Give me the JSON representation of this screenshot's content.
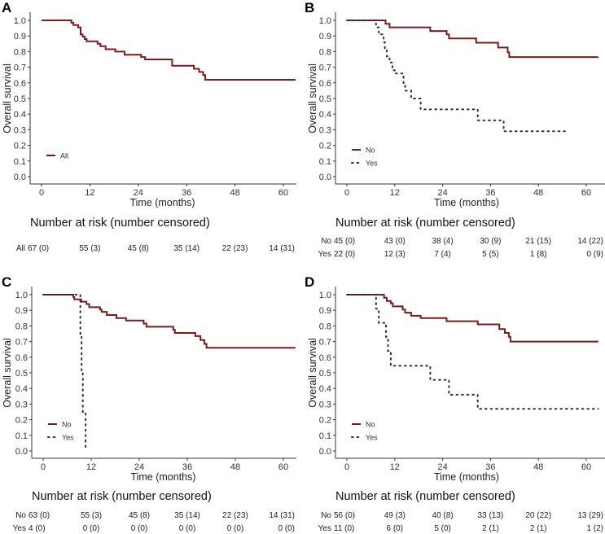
{
  "chart_data": [
    {
      "panel": "A",
      "type": "line",
      "xlabel": "Time (months)",
      "ylabel": "Overall survival",
      "xlim": [
        0,
        63
      ],
      "ylim": [
        0,
        1
      ],
      "xticks": [
        "0",
        "12",
        "24",
        "36",
        "48",
        "60"
      ],
      "yticks": [
        "0.0",
        "0.1",
        "0.2",
        "0.3",
        "0.4",
        "0.5",
        "0.6",
        "0.7",
        "0.8",
        "0.9",
        "1.0"
      ],
      "legend_placement": "bottom-left",
      "series": [
        {
          "name": "All",
          "color": "#7a1c1c",
          "style": "solid",
          "times": [
            0,
            7.4,
            7.9,
            9.1,
            9.7,
            10.2,
            10.7,
            11.2,
            13.9,
            14.6,
            15.9,
            18.3,
            20.6,
            24.7,
            25.7,
            32.4,
            37.8,
            39.1,
            40.1,
            40.6,
            63
          ],
          "survival": [
            1,
            0.985,
            0.97,
            0.955,
            0.91,
            0.896,
            0.88,
            0.866,
            0.85,
            0.835,
            0.815,
            0.8,
            0.78,
            0.765,
            0.75,
            0.71,
            0.69,
            0.67,
            0.65,
            0.62,
            0.62
          ]
        }
      ],
      "risk_table": {
        "title": "Number at risk (number censored)",
        "rows": [
          {
            "label": "All",
            "values": [
              "67 (0)",
              "55 (3)",
              "45 (8)",
              "35 (14)",
              "22 (23)",
              "14 (31)"
            ]
          }
        ]
      }
    },
    {
      "panel": "B",
      "type": "line",
      "xlabel": "Time (months)",
      "ylabel": "Overall survival",
      "xlim": [
        0,
        63
      ],
      "ylim": [
        0,
        1
      ],
      "xticks": [
        "0",
        "12",
        "24",
        "36",
        "48",
        "60"
      ],
      "yticks": [
        "0.0",
        "0.1",
        "0.2",
        "0.3",
        "0.4",
        "0.5",
        "0.6",
        "0.7",
        "0.8",
        "0.9",
        "1.0"
      ],
      "legend_placement": "bottom-left",
      "series": [
        {
          "name": "No",
          "color": "#7a1c1c",
          "style": "solid",
          "times": [
            0,
            9.7,
            10.7,
            20.9,
            25,
            25.6,
            32.4,
            37.9,
            40.3,
            40.7,
            63
          ],
          "survival": [
            1,
            0.978,
            0.955,
            0.932,
            0.91,
            0.884,
            0.857,
            0.826,
            0.796,
            0.765,
            0.765
          ]
        },
        {
          "name": "Yes",
          "color": "#1f2a5c",
          "style": "dotted",
          "times": [
            0,
            7.3,
            8,
            9.2,
            9.5,
            10,
            10.7,
            11.4,
            12,
            14.2,
            14.6,
            16.1,
            18.5,
            32.8,
            39.3,
            55.6
          ],
          "survival": [
            1,
            0.955,
            0.91,
            0.86,
            0.82,
            0.77,
            0.73,
            0.68,
            0.66,
            0.59,
            0.55,
            0.5,
            0.43,
            0.36,
            0.29,
            0.29
          ]
        }
      ],
      "risk_table": {
        "title": "Number at risk (number censored)",
        "rows": [
          {
            "label": "No",
            "values": [
              "45 (0)",
              "43 (0)",
              "38 (4)",
              "30 (9)",
              "21 (15)",
              "14 (22)"
            ]
          },
          {
            "label": "Yes",
            "values": [
              "22 (0)",
              "12 (3)",
              "7 (4)",
              "5 (5)",
              "1 (8)",
              "0 (9)"
            ]
          }
        ]
      }
    },
    {
      "panel": "C",
      "type": "line",
      "xlabel": "Time (months)",
      "ylabel": "Overall survival",
      "xlim": [
        0,
        63
      ],
      "ylim": [
        0,
        1
      ],
      "xticks": [
        "0",
        "12",
        "24",
        "36",
        "48",
        "60"
      ],
      "yticks": [
        "0.0",
        "0.1",
        "0.2",
        "0.3",
        "0.4",
        "0.5",
        "0.6",
        "0.7",
        "0.8",
        "0.9",
        "1.0"
      ],
      "legend_placement": "bottom-left",
      "series": [
        {
          "name": "No",
          "color": "#7a1c1c",
          "style": "solid",
          "times": [
            0,
            7.5,
            7.8,
            9.5,
            10.8,
            11.5,
            14.2,
            14.6,
            15.9,
            18.3,
            20.7,
            25.1,
            25.8,
            32.5,
            32.9,
            38,
            39.3,
            40.3,
            40.8,
            63
          ],
          "survival": [
            1,
            0.985,
            0.97,
            0.955,
            0.94,
            0.92,
            0.905,
            0.89,
            0.87,
            0.85,
            0.835,
            0.815,
            0.795,
            0.775,
            0.755,
            0.735,
            0.71,
            0.685,
            0.66,
            0.66
          ]
        },
        {
          "name": "Yes",
          "color": "#1f2a5c",
          "style": "dotted",
          "times": [
            0,
            9.3,
            9.6,
            9.9,
            10.6
          ],
          "survival": [
            1,
            0.75,
            0.5,
            0.25,
            0
          ]
        }
      ],
      "risk_table": {
        "title": "Number at risk (number censored)",
        "rows": [
          {
            "label": "No",
            "values": [
              "63 (0)",
              "55 (3)",
              "45 (8)",
              "35 (14)",
              "22 (23)",
              "14 (31)"
            ]
          },
          {
            "label": "Yes",
            "values": [
              "4 (0)",
              "0 (0)",
              "0 (0)",
              "0 (0)",
              "0 (0)",
              "0 (0)"
            ]
          }
        ]
      }
    },
    {
      "panel": "D",
      "type": "line",
      "xlabel": "Time (months)",
      "ylabel": "Overall survival",
      "xlim": [
        0,
        63
      ],
      "ylim": [
        0,
        1
      ],
      "xticks": [
        "0",
        "12",
        "24",
        "36",
        "48",
        "60"
      ],
      "yticks": [
        "0.0",
        "0.1",
        "0.2",
        "0.3",
        "0.4",
        "0.5",
        "0.6",
        "0.7",
        "0.8",
        "0.9",
        "1.0"
      ],
      "legend_placement": "bottom-left",
      "series": [
        {
          "name": "No",
          "color": "#7a1c1c",
          "style": "solid",
          "times": [
            0,
            9.3,
            10,
            11,
            11.5,
            14,
            14.6,
            16.1,
            18.5,
            25,
            32.8,
            38.2,
            39.6,
            40.6,
            41,
            63
          ],
          "survival": [
            1,
            0.98,
            0.96,
            0.945,
            0.925,
            0.905,
            0.885,
            0.865,
            0.85,
            0.83,
            0.81,
            0.78,
            0.755,
            0.73,
            0.7,
            0.7
          ]
        },
        {
          "name": "Yes",
          "color": "#1f2a5c",
          "style": "dotted",
          "times": [
            0,
            7.3,
            8,
            9.8,
            10.3,
            11,
            20.9,
            25.6,
            32.8,
            63
          ],
          "survival": [
            1,
            0.91,
            0.82,
            0.73,
            0.64,
            0.545,
            0.455,
            0.36,
            0.27,
            0.27
          ]
        }
      ],
      "risk_table": {
        "title": "Number at risk (number censored)",
        "rows": [
          {
            "label": "No",
            "values": [
              "56 (0)",
              "49 (3)",
              "40 (8)",
              "33 (13)",
              "20 (22)",
              "13 (29)"
            ]
          },
          {
            "label": "Yes",
            "values": [
              "11 (0)",
              "6 (0)",
              "5 (0)",
              "2 (1)",
              "2 (1)",
              "1 (2)"
            ]
          }
        ]
      }
    }
  ]
}
